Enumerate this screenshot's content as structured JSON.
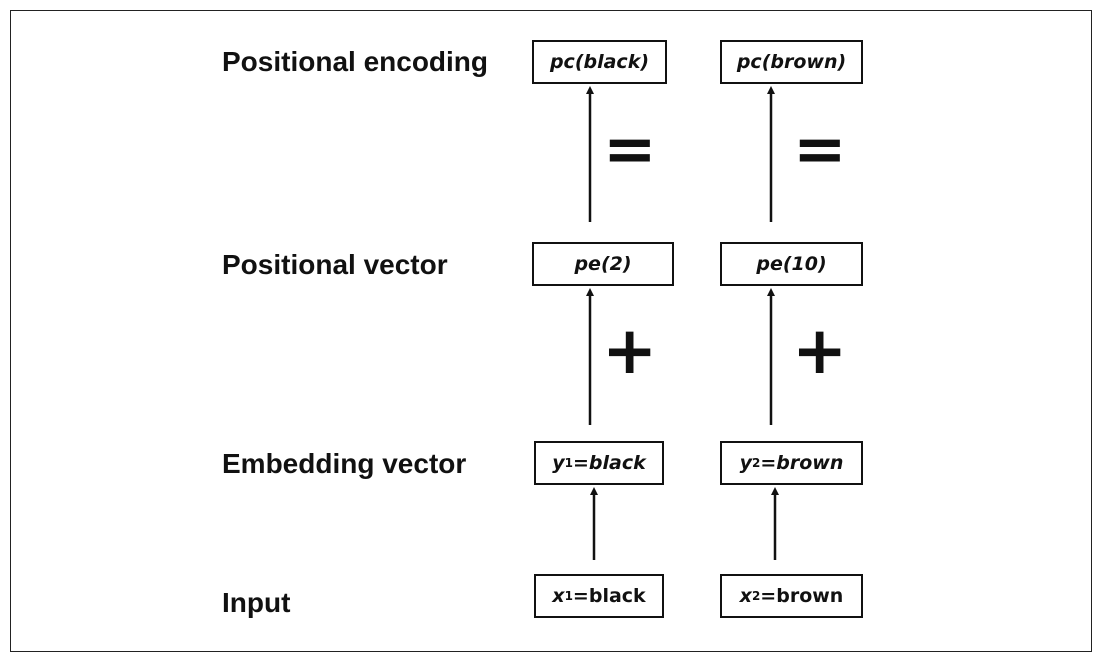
{
  "labels": {
    "positional_encoding": "Positional encoding",
    "positional_vector": "Positional vector",
    "embedding_vector": "Embedding vector",
    "input": "Input"
  },
  "columns": [
    {
      "pc": "pc(black)",
      "pe": "pe(2)",
      "embed_var": "y",
      "embed_sub": "1",
      "embed_word": "=black",
      "input_var": "x",
      "input_sub": "1",
      "input_word": "=black"
    },
    {
      "pc": "pc(brown)",
      "pe": "pe(10)",
      "embed_var": "y",
      "embed_sub": "2",
      "embed_word": "=brown",
      "input_var": "x",
      "input_sub": "2",
      "input_word": "=brown"
    }
  ],
  "operators": {
    "equals": "=",
    "plus": "+"
  }
}
